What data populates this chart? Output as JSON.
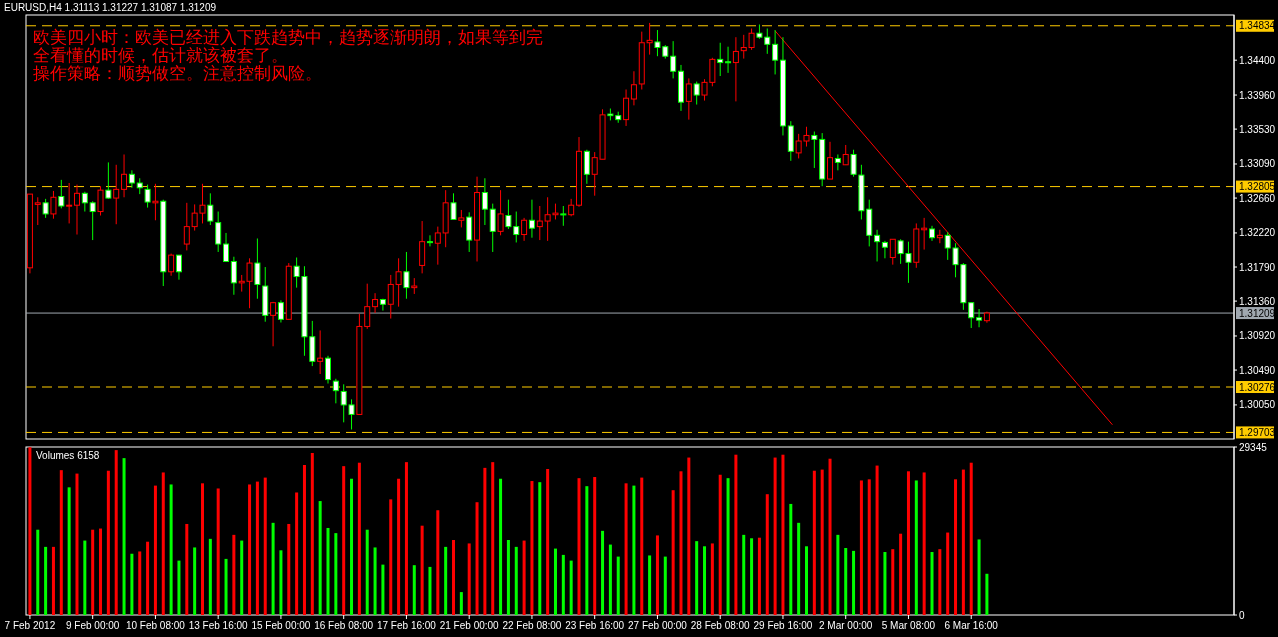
{
  "chart_data": [
    {
      "type": "candlestick",
      "title": "EURUSD,H4  1.31113 1.31227 1.31087 1.31209",
      "annotations": [
        "欧美四小时：欧美已经进入下跌趋势中，趋势逐渐明朗，如果等到完全看懂的时候，估计就该被套了。",
        "操作策略：顺势做空。注意控制风险。"
      ],
      "categories": [
        null,
        null,
        null,
        null,
        null,
        null,
        null,
        null,
        null,
        null,
        null,
        null,
        null,
        null,
        null,
        null,
        null,
        null,
        null,
        null,
        null,
        null,
        null,
        null,
        null,
        null,
        null,
        null,
        null,
        null,
        null,
        null,
        null,
        null,
        null,
        null,
        null,
        null,
        null,
        null,
        null,
        null,
        null,
        null,
        null,
        null,
        null,
        null,
        null,
        null,
        null,
        null,
        null,
        null,
        null,
        null,
        null,
        null,
        null,
        null,
        null,
        null,
        null,
        null,
        null,
        null,
        null,
        null,
        null,
        null,
        null,
        null,
        null,
        null,
        null,
        null,
        null,
        null,
        null,
        null,
        null,
        null,
        null,
        null,
        null,
        null,
        null,
        null,
        null,
        null,
        null,
        null,
        null,
        null,
        null,
        null,
        null,
        null,
        null,
        null,
        null,
        null,
        null,
        null,
        null,
        null,
        null,
        null,
        null,
        null,
        null,
        null,
        null,
        null,
        null,
        null,
        null,
        null,
        null,
        null,
        null,
        null,
        null,
        null,
        null,
        null,
        null,
        null,
        null,
        null,
        null,
        null,
        null,
        null,
        null,
        null,
        null,
        null,
        null,
        null,
        null,
        null,
        null,
        null,
        null,
        null,
        null,
        null,
        null,
        null,
        null,
        null,
        null,
        null
      ],
      "ohlc": [
        [
          1.3178,
          1.3271,
          1.3171,
          1.3271
        ],
        [
          1.3258,
          1.3267,
          1.3232,
          1.326
        ],
        [
          1.326,
          1.3265,
          1.3241,
          1.3246
        ],
        [
          1.3246,
          1.3275,
          1.324,
          1.3267
        ],
        [
          1.3268,
          1.3289,
          1.3253,
          1.3256
        ],
        [
          1.3256,
          1.3285,
          1.3234,
          1.3257
        ],
        [
          1.3257,
          1.3283,
          1.322,
          1.3272
        ],
        [
          1.3272,
          1.3274,
          1.3249,
          1.326
        ],
        [
          1.326,
          1.3262,
          1.3213,
          1.3249
        ],
        [
          1.3249,
          1.3281,
          1.3244,
          1.3276
        ],
        [
          1.3276,
          1.3311,
          1.3265,
          1.3266
        ],
        [
          1.3266,
          1.3308,
          1.3233,
          1.3277
        ],
        [
          1.3277,
          1.3321,
          1.3267,
          1.3296
        ],
        [
          1.3296,
          1.3301,
          1.3279,
          1.3285
        ],
        [
          1.3285,
          1.3291,
          1.3271,
          1.3279
        ],
        [
          1.3277,
          1.3283,
          1.3254,
          1.3261
        ],
        [
          1.326,
          1.3284,
          1.3238,
          1.3262
        ],
        [
          1.3262,
          1.3264,
          1.3155,
          1.3173
        ],
        [
          1.3173,
          1.3196,
          1.3168,
          1.3194
        ],
        [
          1.3194,
          1.3194,
          1.3163,
          1.3173
        ],
        [
          1.3208,
          1.326,
          1.32,
          1.323
        ],
        [
          1.323,
          1.3258,
          1.3225,
          1.3247
        ],
        [
          1.3247,
          1.3284,
          1.3234,
          1.3257
        ],
        [
          1.3257,
          1.3272,
          1.3232,
          1.3237
        ],
        [
          1.3235,
          1.3249,
          1.3198,
          1.3208
        ],
        [
          1.3208,
          1.3222,
          1.3186,
          1.3186
        ],
        [
          1.3186,
          1.3192,
          1.3144,
          1.3159
        ],
        [
          1.3159,
          1.3169,
          1.3148,
          1.3161
        ],
        [
          1.3161,
          1.319,
          1.3127,
          1.3184
        ],
        [
          1.3184,
          1.3215,
          1.3139,
          1.3157
        ],
        [
          1.3155,
          1.3179,
          1.311,
          1.3118
        ],
        [
          1.3118,
          1.3135,
          1.3079,
          1.3134
        ],
        [
          1.3134,
          1.3137,
          1.3109,
          1.3113
        ],
        [
          1.3113,
          1.3184,
          1.3113,
          1.318
        ],
        [
          1.318,
          1.3191,
          1.3153,
          1.3167
        ],
        [
          1.3167,
          1.318,
          1.3067,
          1.3091
        ],
        [
          1.3091,
          1.3111,
          1.3054,
          1.306
        ],
        [
          1.306,
          1.3099,
          1.3044,
          1.3064
        ],
        [
          1.3064,
          1.3067,
          1.3032,
          1.3037
        ],
        [
          1.3035,
          1.3038,
          1.3007,
          1.3023
        ],
        [
          1.3022,
          1.3031,
          1.2983,
          1.3005
        ],
        [
          1.3005,
          1.3012,
          1.2974,
          1.2993
        ],
        [
          1.2993,
          1.312,
          1.2993,
          1.3104
        ],
        [
          1.3104,
          1.3158,
          1.3101,
          1.3129
        ],
        [
          1.3129,
          1.3146,
          1.3121,
          1.3138
        ],
        [
          1.3138,
          1.3139,
          1.3124,
          1.3132
        ],
        [
          1.3132,
          1.3169,
          1.3114,
          1.3157
        ],
        [
          1.3157,
          1.319,
          1.3129,
          1.3173
        ],
        [
          1.3173,
          1.3198,
          1.3139,
          1.3153
        ],
        [
          1.3153,
          1.3165,
          1.3145,
          1.3155
        ],
        [
          1.3181,
          1.3237,
          1.3171,
          1.3211
        ],
        [
          1.3211,
          1.3219,
          1.3205,
          1.321
        ],
        [
          1.3209,
          1.323,
          1.3182,
          1.3222
        ],
        [
          1.3222,
          1.3276,
          1.3204,
          1.326
        ],
        [
          1.326,
          1.3272,
          1.3239,
          1.3239
        ],
        [
          1.3238,
          1.3251,
          1.3229,
          1.3241
        ],
        [
          1.3242,
          1.3248,
          1.3198,
          1.3213
        ],
        [
          1.3213,
          1.3293,
          1.3186,
          1.3273
        ],
        [
          1.3273,
          1.3291,
          1.3232,
          1.3252
        ],
        [
          1.3252,
          1.3259,
          1.3198,
          1.3224
        ],
        [
          1.3224,
          1.3276,
          1.3219,
          1.3246
        ],
        [
          1.3244,
          1.3264,
          1.3227,
          1.323
        ],
        [
          1.323,
          1.3249,
          1.321,
          1.322
        ],
        [
          1.322,
          1.3241,
          1.3212,
          1.3238
        ],
        [
          1.3238,
          1.3264,
          1.3216,
          1.3228
        ],
        [
          1.323,
          1.3256,
          1.3213,
          1.3237
        ],
        [
          1.3237,
          1.3267,
          1.3212,
          1.3245
        ],
        [
          1.3245,
          1.3259,
          1.3239,
          1.3247
        ],
        [
          1.3246,
          1.3256,
          1.3231,
          1.3245
        ],
        [
          1.3245,
          1.3265,
          1.3243,
          1.3257
        ],
        [
          1.3257,
          1.3343,
          1.3255,
          1.3325
        ],
        [
          1.3325,
          1.3327,
          1.3284,
          1.3296
        ],
        [
          1.3296,
          1.3324,
          1.3269,
          1.3317
        ],
        [
          1.3315,
          1.3378,
          1.3315,
          1.3371
        ],
        [
          1.3372,
          1.3379,
          1.3364,
          1.337
        ],
        [
          1.337,
          1.3375,
          1.3361,
          1.3365
        ],
        [
          1.3365,
          1.3403,
          1.3357,
          1.3392
        ],
        [
          1.3391,
          1.3426,
          1.3383,
          1.3409
        ],
        [
          1.341,
          1.3476,
          1.3403,
          1.3462
        ],
        [
          1.3462,
          1.3487,
          1.3447,
          1.3465
        ],
        [
          1.3463,
          1.3478,
          1.3445,
          1.3456
        ],
        [
          1.3457,
          1.3459,
          1.3442,
          1.3445
        ],
        [
          1.3445,
          1.3464,
          1.3417,
          1.3426
        ],
        [
          1.3426,
          1.3434,
          1.3376,
          1.3387
        ],
        [
          1.3388,
          1.3417,
          1.3365,
          1.341
        ],
        [
          1.341,
          1.3413,
          1.3384,
          1.3396
        ],
        [
          1.3396,
          1.3416,
          1.3389,
          1.3412
        ],
        [
          1.3412,
          1.3443,
          1.3407,
          1.3441
        ],
        [
          1.3441,
          1.3462,
          1.342,
          1.3437
        ],
        [
          1.3438,
          1.3457,
          1.3424,
          1.3437
        ],
        [
          1.3437,
          1.3469,
          1.3388,
          1.3451
        ],
        [
          1.3452,
          1.3472,
          1.3442,
          1.3456
        ],
        [
          1.3456,
          1.348,
          1.3453,
          1.3474
        ],
        [
          1.3474,
          1.3485,
          1.3467,
          1.3469
        ],
        [
          1.3469,
          1.348,
          1.3448,
          1.346
        ],
        [
          1.346,
          1.3478,
          1.3422,
          1.344
        ],
        [
          1.344,
          1.3469,
          1.3345,
          1.3357
        ],
        [
          1.3357,
          1.3363,
          1.3313,
          1.3325
        ],
        [
          1.3323,
          1.3347,
          1.3316,
          1.3338
        ],
        [
          1.3338,
          1.3356,
          1.3331,
          1.3345
        ],
        [
          1.3345,
          1.335,
          1.3304,
          1.334
        ],
        [
          1.334,
          1.3348,
          1.3281,
          1.329
        ],
        [
          1.329,
          1.3337,
          1.329,
          1.3317
        ],
        [
          1.3316,
          1.3321,
          1.3301,
          1.3311
        ],
        [
          1.3308,
          1.3333,
          1.3308,
          1.3321
        ],
        [
          1.3321,
          1.3327,
          1.3293,
          1.3296
        ],
        [
          1.3295,
          1.3308,
          1.3239,
          1.325
        ],
        [
          1.3252,
          1.3264,
          1.3205,
          1.3219
        ],
        [
          1.3219,
          1.3226,
          1.3186,
          1.3211
        ],
        [
          1.321,
          1.3212,
          1.319,
          1.3204
        ],
        [
          1.3191,
          1.3214,
          1.3182,
          1.3214
        ],
        [
          1.3212,
          1.3214,
          1.3183,
          1.3196
        ],
        [
          1.3196,
          1.3211,
          1.3159,
          1.3185
        ],
        [
          1.3185,
          1.3234,
          1.3178,
          1.3227
        ],
        [
          1.3226,
          1.3241,
          1.3201,
          1.3228
        ],
        [
          1.3227,
          1.3231,
          1.3212,
          1.3216
        ],
        [
          1.3216,
          1.3226,
          1.3209,
          1.3219
        ],
        [
          1.3219,
          1.3223,
          1.3188,
          1.3203
        ],
        [
          1.3203,
          1.3209,
          1.3166,
          1.3182
        ],
        [
          1.3182,
          1.3184,
          1.3125,
          1.3134
        ],
        [
          1.3134,
          1.3134,
          1.3102,
          1.3115
        ],
        [
          1.3115,
          1.3126,
          1.3103,
          1.3112
        ],
        [
          1.31113,
          1.31227,
          1.31087,
          1.31209
        ],
        null,
        null,
        null,
        null,
        null,
        null,
        null,
        null,
        null,
        null,
        null,
        null,
        null,
        null,
        null,
        null,
        null,
        null,
        null,
        null,
        null,
        null,
        null,
        null,
        null,
        null,
        null,
        null,
        null,
        null,
        null
      ],
      "series": [
        {
          "type": "line",
          "color": "#ff0000",
          "values": [
            null,
            null,
            null,
            null,
            null,
            null,
            null,
            null,
            null,
            null,
            null,
            null,
            null,
            null,
            null,
            null,
            null,
            null,
            null,
            null,
            null,
            null,
            null,
            null,
            null,
            null,
            null,
            null,
            null,
            null,
            null,
            null,
            null,
            null,
            null,
            null,
            null,
            null,
            null,
            null,
            null,
            null,
            null,
            null,
            null,
            null,
            null,
            null,
            null,
            null,
            null,
            null,
            null,
            null,
            null,
            null,
            null,
            null,
            null,
            null,
            null,
            null,
            null,
            null,
            null,
            null,
            null,
            null,
            null,
            null,
            null,
            null,
            null,
            null,
            null,
            null,
            null,
            null,
            null,
            null,
            null,
            null,
            null,
            null,
            null,
            null,
            null,
            null,
            null,
            null,
            null,
            null,
            null,
            null,
            null,
            1.3477,
            null,
            null,
            null,
            null,
            null,
            null,
            null,
            null,
            null,
            null,
            null,
            null,
            null,
            null,
            null,
            null,
            null,
            null,
            null,
            null,
            null,
            null,
            null,
            null,
            null,
            null,
            null,
            null,
            null,
            null,
            null,
            null,
            null,
            null,
            null,
            null,
            null,
            null,
            null,
            null,
            null,
            null,
            1.298,
            null,
            null,
            null,
            null,
            null,
            null,
            null,
            null,
            null,
            null,
            null,
            null,
            null,
            null,
            null
          ]
        }
      ],
      "ylim": [
        1.2962,
        1.3497
      ],
      "yticks": [
        {
          "value": 1.344,
          "label": "1.34400"
        },
        {
          "value": 1.3396,
          "label": "1.33960"
        },
        {
          "value": 1.3353,
          "label": "1.33530"
        },
        {
          "value": 1.3309,
          "label": "1.33090"
        },
        {
          "value": 1.3266,
          "label": "1.32660"
        },
        {
          "value": 1.3222,
          "label": "1.32220"
        },
        {
          "value": 1.3179,
          "label": "1.31790"
        },
        {
          "value": 1.3136,
          "label": "1.31360"
        },
        {
          "value": 1.3092,
          "label": "1.30920"
        },
        {
          "value": 1.3049,
          "label": "1.30490"
        },
        {
          "value": 1.3005,
          "label": "1.30050"
        }
      ],
      "ref_lines": [
        {
          "axis": "y",
          "value": 1.34834,
          "label": "1.34834",
          "color": "#ffcc00",
          "line_style": "dashed"
        },
        {
          "axis": "y",
          "value": 1.32805,
          "label": "1.32805",
          "color": "#ffcc00",
          "line_style": "dashed"
        },
        {
          "axis": "y",
          "value": 1.30276,
          "label": "1.30276",
          "color": "#ffcc00",
          "line_style": "dashed"
        },
        {
          "axis": "y",
          "value": 1.29703,
          "label": "1.29703",
          "color": "#ffcc00",
          "line_style": "dashed"
        },
        {
          "axis": "y",
          "value": 1.31209,
          "label": "1.31209",
          "color": "#a0a8b0",
          "line_style": "solid"
        }
      ],
      "tick_labels": "y"
    },
    {
      "type": "bar",
      "title": "Volumes 6158",
      "categories": [
        "7 Feb 2012",
        null,
        null,
        null,
        null,
        null,
        null,
        null,
        "9 Feb 00:00",
        null,
        null,
        null,
        null,
        null,
        null,
        null,
        "10 Feb 08:00",
        null,
        null,
        null,
        null,
        null,
        null,
        null,
        "13 Feb 16:00",
        null,
        null,
        null,
        null,
        null,
        null,
        null,
        "15 Feb 00:00",
        null,
        null,
        null,
        null,
        null,
        null,
        null,
        "16 Feb 08:00",
        null,
        null,
        null,
        null,
        null,
        null,
        null,
        "17 Feb 16:00",
        null,
        null,
        null,
        null,
        null,
        null,
        null,
        "21 Feb 00:00",
        null,
        null,
        null,
        null,
        null,
        null,
        null,
        "22 Feb 08:00",
        null,
        null,
        null,
        null,
        null,
        null,
        null,
        "23 Feb 16:00",
        null,
        null,
        null,
        null,
        null,
        null,
        null,
        "27 Feb 00:00",
        null,
        null,
        null,
        null,
        null,
        null,
        null,
        "28 Feb 08:00",
        null,
        null,
        null,
        null,
        null,
        null,
        null,
        "29 Feb 16:00",
        null,
        null,
        null,
        null,
        null,
        null,
        null,
        "2 Mar 00:00",
        null,
        null,
        null,
        null,
        null,
        null,
        null,
        "5 Mar 08:00",
        null,
        null,
        null,
        null,
        null,
        null,
        null,
        "6 Mar 16:00",
        null,
        null,
        null,
        null,
        null,
        null,
        null,
        null,
        null,
        null,
        null,
        null,
        null,
        null,
        null,
        null,
        null,
        null,
        null,
        null,
        null,
        null,
        null,
        null,
        null,
        null,
        null,
        null,
        null,
        null,
        null,
        null,
        null
      ],
      "values": [
        29300,
        14900,
        11900,
        11900,
        25300,
        22300,
        24700,
        13000,
        14900,
        15100,
        25200,
        28800,
        27400,
        10700,
        11100,
        12800,
        22600,
        24900,
        22800,
        9500,
        15900,
        11800,
        23000,
        13300,
        22100,
        9800,
        14000,
        13000,
        22800,
        23300,
        24000,
        16100,
        11300,
        15900,
        21400,
        26200,
        28300,
        19900,
        15200,
        14300,
        26000,
        23800,
        26600,
        14900,
        11800,
        8800,
        20200,
        23800,
        26700,
        8700,
        15600,
        8400,
        18300,
        11900,
        13100,
        4000,
        12500,
        19700,
        25700,
        26700,
        23800,
        13100,
        11900,
        13000,
        23400,
        23200,
        25500,
        11600,
        10500,
        9500,
        23900,
        22500,
        24100,
        14700,
        12300,
        10200,
        23000,
        22600,
        24000,
        10400,
        13900,
        10200,
        21800,
        25100,
        27500,
        12900,
        12000,
        12500,
        24500,
        23900,
        28000,
        14000,
        13400,
        13500,
        21100,
        27500,
        28000,
        19400,
        16100,
        12000,
        25200,
        25400,
        27300,
        14000,
        11700,
        11200,
        23500,
        23700,
        26100,
        11000,
        11500,
        14200,
        25100,
        23500,
        24900,
        11000,
        11500,
        14400,
        23700,
        25400,
        26600,
        13200,
        7200,
        null,
        null,
        null,
        null,
        null,
        null,
        null,
        null,
        null,
        null,
        null,
        null,
        null,
        null,
        null,
        null,
        null,
        null,
        null,
        null,
        null,
        null,
        null,
        null,
        null,
        null,
        null,
        null,
        null,
        null,
        null
      ],
      "colors": [
        "#ff0000",
        "#00ff00",
        "#00ff00",
        "#ff0000",
        "#ff0000",
        "#00ff00",
        "#ff0000",
        "#00ff00",
        "#ff0000",
        "#ff0000",
        "#ff0000",
        "#ff0000",
        "#00ff00",
        "#00ff00",
        "#ff0000",
        "#ff0000",
        "#ff0000",
        "#ff0000",
        "#00ff00",
        "#00ff00",
        "#ff0000",
        "#00ff00",
        "#ff0000",
        "#00ff00",
        "#ff0000",
        "#00ff00",
        "#ff0000",
        "#00ff00",
        "#ff0000",
        "#ff0000",
        "#ff0000",
        "#00ff00",
        "#00ff00",
        "#ff0000",
        "#ff0000",
        "#ff0000",
        "#ff0000",
        "#00ff00",
        "#00ff00",
        "#00ff00",
        "#ff0000",
        "#00ff00",
        "#ff0000",
        "#00ff00",
        "#00ff00",
        "#00ff00",
        "#ff0000",
        "#ff0000",
        "#ff0000",
        "#00ff00",
        "#ff0000",
        "#00ff00",
        "#ff0000",
        "#00ff00",
        "#ff0000",
        "#00ff00",
        "#ff0000",
        "#ff0000",
        "#ff0000",
        "#ff0000",
        "#00ff00",
        "#00ff00",
        "#00ff00",
        "#ff0000",
        "#ff0000",
        "#00ff00",
        "#ff0000",
        "#00ff00",
        "#00ff00",
        "#00ff00",
        "#ff0000",
        "#00ff00",
        "#ff0000",
        "#00ff00",
        "#00ff00",
        "#00ff00",
        "#ff0000",
        "#00ff00",
        "#ff0000",
        "#00ff00",
        "#ff0000",
        "#00ff00",
        "#ff0000",
        "#ff0000",
        "#ff0000",
        "#00ff00",
        "#00ff00",
        "#ff0000",
        "#ff0000",
        "#00ff00",
        "#ff0000",
        "#00ff00",
        "#00ff00",
        "#ff0000",
        "#ff0000",
        "#ff0000",
        "#ff0000",
        "#00ff00",
        "#00ff00",
        "#00ff00",
        "#ff0000",
        "#ff0000",
        "#ff0000",
        "#00ff00",
        "#00ff00",
        "#00ff00",
        "#ff0000",
        "#ff0000",
        "#ff0000",
        "#00ff00",
        "#ff0000",
        "#ff0000",
        "#ff0000",
        "#00ff00",
        "#ff0000",
        "#00ff00",
        "#ff0000",
        "#ff0000",
        "#ff0000",
        "#ff0000",
        "#ff0000",
        "#00ff00",
        "#00ff00",
        null,
        null,
        null,
        null,
        null,
        null,
        null,
        null,
        null,
        null,
        null,
        null,
        null,
        null,
        null,
        null,
        null,
        null,
        null,
        null,
        null,
        null,
        null,
        null,
        null,
        null,
        null,
        null,
        null,
        null,
        null
      ],
      "ylim": [
        0,
        29345
      ],
      "yticks": [
        0,
        29345
      ]
    }
  ]
}
